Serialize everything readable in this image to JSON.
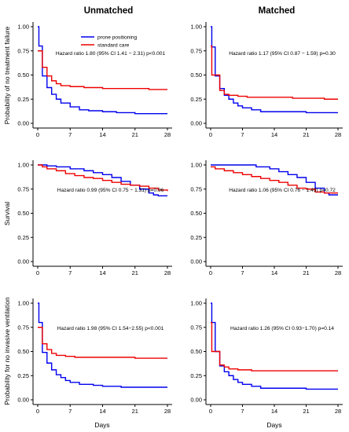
{
  "column_titles": [
    "Unmatched",
    "Matched"
  ],
  "row_ylabels": [
    "Probability of no treatment failure",
    "Survival",
    "Probability for no invasive ventilation"
  ],
  "xlabel": "Days",
  "legend": [
    {
      "name": "prone positioning",
      "color": "#0000ee"
    },
    {
      "name": "standard care",
      "color": "#ee0000"
    }
  ],
  "chart_data": [
    {
      "type": "line",
      "step": true,
      "panel": "unmatched-treatment-failure",
      "xlim": [
        0,
        28
      ],
      "ylim": [
        0,
        1
      ],
      "xticks": [
        0,
        7,
        14,
        21,
        28
      ],
      "yticks": [
        0,
        0.25,
        0.5,
        0.75,
        1
      ],
      "ytick_labels": [
        "0.00",
        "0.25",
        "0.50",
        "0.75",
        "1.00"
      ],
      "annotation": "Hazard ratio 1.80 (95% CI 1.41 − 2.31) p<0.001",
      "series": [
        {
          "name": "prone positioning",
          "color": "#0000ee",
          "points": [
            [
              0,
              1.0
            ],
            [
              0.25,
              0.8
            ],
            [
              1,
              0.49
            ],
            [
              2,
              0.37
            ],
            [
              3,
              0.3
            ],
            [
              4,
              0.25
            ],
            [
              5,
              0.21
            ],
            [
              7,
              0.17
            ],
            [
              9,
              0.14
            ],
            [
              11,
              0.13
            ],
            [
              14,
              0.12
            ],
            [
              17,
              0.11
            ],
            [
              21,
              0.1
            ],
            [
              24,
              0.1
            ],
            [
              28,
              0.1
            ]
          ]
        },
        {
          "name": "standard care",
          "color": "#ee0000",
          "points": [
            [
              0,
              0.75
            ],
            [
              1,
              0.58
            ],
            [
              2,
              0.49
            ],
            [
              3,
              0.44
            ],
            [
              4,
              0.41
            ],
            [
              5,
              0.39
            ],
            [
              7,
              0.38
            ],
            [
              10,
              0.37
            ],
            [
              14,
              0.36
            ],
            [
              21,
              0.36
            ],
            [
              24,
              0.35
            ],
            [
              28,
              0.35
            ]
          ]
        }
      ]
    },
    {
      "type": "line",
      "step": true,
      "panel": "matched-treatment-failure",
      "xlim": [
        0,
        28
      ],
      "ylim": [
        0,
        1
      ],
      "xticks": [
        0,
        7,
        14,
        21,
        28
      ],
      "yticks": [
        0,
        0.25,
        0.5,
        0.75,
        1
      ],
      "ytick_labels": [
        "0.00",
        "0.25",
        "0.50",
        "0.75",
        "1.00"
      ],
      "annotation": "Hazard ratio 1.17 (95% CI 0.87 − 1.59) p=0.30",
      "series": [
        {
          "name": "prone positioning",
          "color": "#0000ee",
          "points": [
            [
              0,
              1.0
            ],
            [
              0.25,
              0.79
            ],
            [
              1,
              0.49
            ],
            [
              2,
              0.36
            ],
            [
              3,
              0.29
            ],
            [
              4,
              0.25
            ],
            [
              5,
              0.21
            ],
            [
              6,
              0.18
            ],
            [
              7,
              0.16
            ],
            [
              9,
              0.14
            ],
            [
              11,
              0.12
            ],
            [
              14,
              0.12
            ],
            [
              21,
              0.11
            ],
            [
              28,
              0.11
            ]
          ]
        },
        {
          "name": "standard care",
          "color": "#ee0000",
          "points": [
            [
              0,
              0.8
            ],
            [
              0.25,
              0.5
            ],
            [
              2,
              0.34
            ],
            [
              3,
              0.3
            ],
            [
              4,
              0.29
            ],
            [
              6,
              0.28
            ],
            [
              8,
              0.27
            ],
            [
              12,
              0.27
            ],
            [
              18,
              0.26
            ],
            [
              21,
              0.26
            ],
            [
              25,
              0.25
            ],
            [
              28,
              0.25
            ]
          ]
        }
      ]
    },
    {
      "type": "line",
      "step": true,
      "panel": "unmatched-survival",
      "xlim": [
        0,
        28
      ],
      "ylim": [
        0,
        1
      ],
      "xticks": [
        0,
        7,
        14,
        21,
        28
      ],
      "yticks": [
        0,
        0.25,
        0.5,
        0.75,
        1
      ],
      "ytick_labels": [
        "0.00",
        "0.25",
        "0.50",
        "0.75",
        "1.00"
      ],
      "annotation": "Hazard ratio 0.99 (95% CI 0.75 − 1.31) p=0.96",
      "series": [
        {
          "name": "prone positioning",
          "color": "#0000ee",
          "points": [
            [
              0,
              1.0
            ],
            [
              2,
              0.99
            ],
            [
              4,
              0.98
            ],
            [
              7,
              0.96
            ],
            [
              10,
              0.94
            ],
            [
              12,
              0.92
            ],
            [
              14,
              0.9
            ],
            [
              16,
              0.87
            ],
            [
              18,
              0.83
            ],
            [
              20,
              0.79
            ],
            [
              22,
              0.75
            ],
            [
              24,
              0.71
            ],
            [
              25,
              0.69
            ],
            [
              26,
              0.68
            ],
            [
              28,
              0.68
            ]
          ]
        },
        {
          "name": "standard care",
          "color": "#ee0000",
          "points": [
            [
              0,
              1.0
            ],
            [
              1,
              0.98
            ],
            [
              2,
              0.96
            ],
            [
              4,
              0.94
            ],
            [
              6,
              0.91
            ],
            [
              8,
              0.89
            ],
            [
              10,
              0.87
            ],
            [
              12,
              0.86
            ],
            [
              14,
              0.84
            ],
            [
              16,
              0.82
            ],
            [
              18,
              0.8
            ],
            [
              20,
              0.79
            ],
            [
              22,
              0.78
            ],
            [
              24,
              0.76
            ],
            [
              26,
              0.74
            ],
            [
              28,
              0.73
            ]
          ]
        }
      ]
    },
    {
      "type": "line",
      "step": true,
      "panel": "matched-survival",
      "xlim": [
        0,
        28
      ],
      "ylim": [
        0,
        1
      ],
      "xticks": [
        0,
        7,
        14,
        21,
        28
      ],
      "yticks": [
        0,
        0.25,
        0.5,
        0.75,
        1
      ],
      "ytick_labels": [
        "0.00",
        "0.25",
        "0.50",
        "0.75",
        "1.00"
      ],
      "annotation": "Hazard ratio 1.06 (95% CI 0.76 − 1.49) p=0.72",
      "series": [
        {
          "name": "prone positioning",
          "color": "#0000ee",
          "points": [
            [
              0,
              1.0
            ],
            [
              7,
              1.0
            ],
            [
              10,
              0.98
            ],
            [
              13,
              0.96
            ],
            [
              15,
              0.93
            ],
            [
              17,
              0.9
            ],
            [
              19,
              0.87
            ],
            [
              21,
              0.82
            ],
            [
              23,
              0.76
            ],
            [
              25,
              0.71
            ],
            [
              26,
              0.69
            ],
            [
              28,
              0.69
            ]
          ]
        },
        {
          "name": "standard care",
          "color": "#ee0000",
          "points": [
            [
              0,
              0.98
            ],
            [
              1,
              0.96
            ],
            [
              3,
              0.94
            ],
            [
              5,
              0.92
            ],
            [
              7,
              0.9
            ],
            [
              9,
              0.88
            ],
            [
              11,
              0.86
            ],
            [
              13,
              0.84
            ],
            [
              15,
              0.82
            ],
            [
              17,
              0.79
            ],
            [
              19,
              0.76
            ],
            [
              21,
              0.75
            ],
            [
              23,
              0.72
            ],
            [
              25,
              0.71
            ],
            [
              28,
              0.71
            ]
          ]
        }
      ]
    },
    {
      "type": "line",
      "step": true,
      "panel": "unmatched-invasive-ventilation",
      "xlim": [
        0,
        28
      ],
      "ylim": [
        0,
        1
      ],
      "xticks": [
        0,
        7,
        14,
        21,
        28
      ],
      "yticks": [
        0,
        0.25,
        0.5,
        0.75,
        1
      ],
      "ytick_labels": [
        "0.00",
        "0.25",
        "0.50",
        "0.75",
        "1.00"
      ],
      "annotation": "Hazard ratio 1.98 (95% CI 1.54−2.55) p<0.001",
      "series": [
        {
          "name": "prone positioning",
          "color": "#0000ee",
          "points": [
            [
              0,
              1.0
            ],
            [
              0.25,
              0.8
            ],
            [
              1,
              0.49
            ],
            [
              2,
              0.38
            ],
            [
              3,
              0.31
            ],
            [
              4,
              0.26
            ],
            [
              5,
              0.23
            ],
            [
              6,
              0.2
            ],
            [
              7,
              0.18
            ],
            [
              9,
              0.16
            ],
            [
              12,
              0.15
            ],
            [
              14,
              0.14
            ],
            [
              18,
              0.13
            ],
            [
              21,
              0.13
            ],
            [
              28,
              0.13
            ]
          ]
        },
        {
          "name": "standard care",
          "color": "#ee0000",
          "points": [
            [
              0,
              0.75
            ],
            [
              1,
              0.58
            ],
            [
              2,
              0.52
            ],
            [
              3,
              0.48
            ],
            [
              4,
              0.46
            ],
            [
              6,
              0.45
            ],
            [
              8,
              0.44
            ],
            [
              14,
              0.44
            ],
            [
              21,
              0.43
            ],
            [
              28,
              0.43
            ]
          ]
        }
      ]
    },
    {
      "type": "line",
      "step": true,
      "panel": "matched-invasive-ventilation",
      "xlim": [
        0,
        28
      ],
      "ylim": [
        0,
        1
      ],
      "xticks": [
        0,
        7,
        14,
        21,
        28
      ],
      "yticks": [
        0,
        0.25,
        0.5,
        0.75,
        1
      ],
      "ytick_labels": [
        "0.00",
        "0.25",
        "0.50",
        "0.75",
        "1.00"
      ],
      "annotation": "Hazard ratio 1.26 (95% CI 0.93−1.70) p=0.14",
      "series": [
        {
          "name": "prone positioning",
          "color": "#0000ee",
          "points": [
            [
              0,
              1.0
            ],
            [
              0.25,
              0.8
            ],
            [
              1,
              0.5
            ],
            [
              2,
              0.35
            ],
            [
              3,
              0.29
            ],
            [
              4,
              0.25
            ],
            [
              5,
              0.21
            ],
            [
              6,
              0.18
            ],
            [
              7,
              0.16
            ],
            [
              9,
              0.14
            ],
            [
              11,
              0.12
            ],
            [
              14,
              0.12
            ],
            [
              21,
              0.11
            ],
            [
              28,
              0.11
            ]
          ]
        },
        {
          "name": "standard care",
          "color": "#ee0000",
          "points": [
            [
              0,
              0.8
            ],
            [
              0.25,
              0.5
            ],
            [
              2,
              0.36
            ],
            [
              3,
              0.34
            ],
            [
              4,
              0.32
            ],
            [
              6,
              0.31
            ],
            [
              9,
              0.3
            ],
            [
              14,
              0.3
            ],
            [
              21,
              0.3
            ],
            [
              28,
              0.3
            ]
          ]
        }
      ]
    }
  ]
}
